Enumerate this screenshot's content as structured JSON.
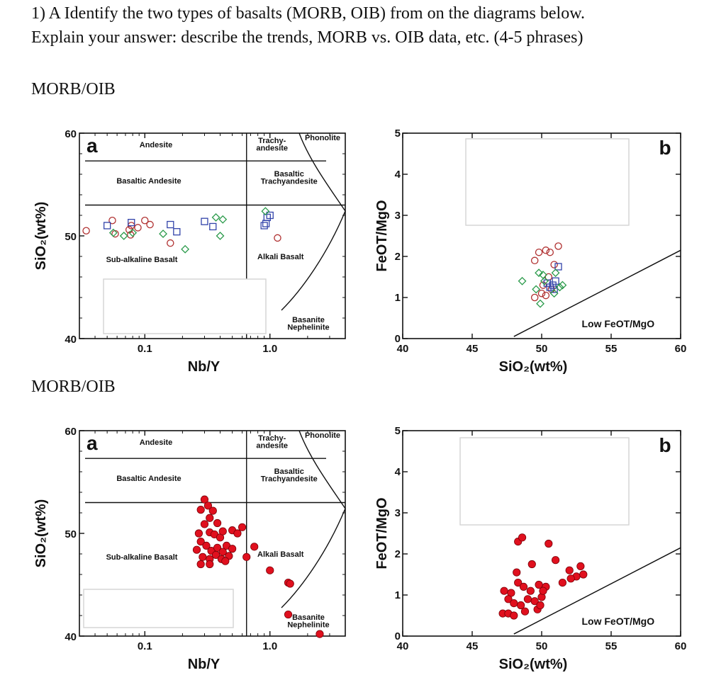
{
  "question": {
    "line1": "1) A Identify the two types of basalts (MORB, OIB) from on the diagrams below.",
    "line2": "Explain your answer: describe the trends, MORB vs. OIB data, etc. (4-5 phrases)"
  },
  "section_labels": [
    "MORB/OIB",
    "MORB/OIB"
  ],
  "colors": {
    "morb_circle": "#b03030",
    "morb_square": "#3344aa",
    "morb_diamond": "#2a9a4a",
    "oib_fill": "#e0101e",
    "oib_stroke": "#7a0008"
  },
  "chart_data": [
    {
      "type": "scatter",
      "panel": "a",
      "set": "MORB/OIB (open symbols)",
      "xlabel": "Nb/Y",
      "ylabel": "SiO2(wt%)",
      "xscale": "log",
      "xlim": [
        0.03,
        4
      ],
      "ylim": [
        40,
        60
      ],
      "xticks": [
        "0.1",
        "1.0"
      ],
      "yticks": [
        "40",
        "50",
        "60"
      ],
      "fields": [
        "Andesite",
        "Trachy-\nandesite",
        "Phonolite",
        "Basaltic Andesite",
        "Basaltic\nTrachyandesite",
        "Sub-alkaline Basalt",
        "Alkali Basalt",
        "Basanite\nNephelinite"
      ],
      "series": [
        {
          "name": "circles",
          "marker": "open-circle",
          "points": [
            [
              0.034,
              50.5
            ],
            [
              0.055,
              51.5
            ],
            [
              0.058,
              50.2
            ],
            [
              0.075,
              50.6
            ],
            [
              0.077,
              50.1
            ],
            [
              0.078,
              51.0
            ],
            [
              0.088,
              50.8
            ],
            [
              0.1,
              51.5
            ],
            [
              0.11,
              51.1
            ],
            [
              0.16,
              49.3
            ],
            [
              1.15,
              49.8
            ]
          ]
        },
        {
          "name": "squares",
          "marker": "open-square",
          "points": [
            [
              0.05,
              51.0
            ],
            [
              0.078,
              51.3
            ],
            [
              0.16,
              51.1
            ],
            [
              0.18,
              50.4
            ],
            [
              0.3,
              51.4
            ],
            [
              0.35,
              50.9
            ],
            [
              0.9,
              51.0
            ],
            [
              0.95,
              51.8
            ],
            [
              1.0,
              52.0
            ],
            [
              0.93,
              51.2
            ]
          ]
        },
        {
          "name": "diamonds",
          "marker": "open-diamond",
          "points": [
            [
              0.056,
              50.3
            ],
            [
              0.068,
              50.0
            ],
            [
              0.08,
              50.3
            ],
            [
              0.14,
              50.2
            ],
            [
              0.21,
              48.7
            ],
            [
              0.37,
              51.8
            ],
            [
              0.42,
              51.6
            ],
            [
              0.4,
              50.0
            ],
            [
              0.92,
              52.4
            ]
          ]
        }
      ]
    },
    {
      "type": "scatter",
      "panel": "b",
      "set": "MORB/OIB (open symbols)",
      "xlabel": "SiO2(wt%)",
      "ylabel": "FeOT/MgO",
      "xlim": [
        40,
        60
      ],
      "ylim": [
        0,
        5
      ],
      "xticks": [
        "40",
        "45",
        "50",
        "55",
        "60"
      ],
      "yticks": [
        "0",
        "1",
        "2",
        "3",
        "4",
        "5"
      ],
      "annotation": "Low FeOT/MgO",
      "boundary_line": [
        [
          48,
          0.05
        ],
        [
          60,
          2.15
        ]
      ],
      "series": [
        {
          "name": "circles",
          "marker": "open-circle",
          "points": [
            [
              49.5,
              1.9
            ],
            [
              49.8,
              2.1
            ],
            [
              50.3,
              2.15
            ],
            [
              50.6,
              2.1
            ],
            [
              51.2,
              2.25
            ],
            [
              49.5,
              1.0
            ],
            [
              50.0,
              1.1
            ],
            [
              50.3,
              1.05
            ],
            [
              50.7,
              1.2
            ],
            [
              50.9,
              1.8
            ],
            [
              50.5,
              1.5
            ],
            [
              50.1,
              1.3
            ]
          ]
        },
        {
          "name": "squares",
          "marker": "open-square",
          "points": [
            [
              50.4,
              1.35
            ],
            [
              50.8,
              1.3
            ],
            [
              51.0,
              1.4
            ],
            [
              51.2,
              1.75
            ],
            [
              50.9,
              1.2
            ],
            [
              50.6,
              1.25
            ]
          ]
        },
        {
          "name": "diamonds",
          "marker": "open-diamond",
          "points": [
            [
              48.6,
              1.4
            ],
            [
              49.6,
              1.2
            ],
            [
              49.9,
              0.85
            ],
            [
              49.8,
              1.6
            ],
            [
              50.1,
              1.55
            ],
            [
              51.0,
              1.6
            ],
            [
              51.3,
              1.25
            ],
            [
              51.5,
              1.3
            ],
            [
              50.9,
              1.1
            ],
            [
              50.2,
              1.4
            ]
          ]
        }
      ]
    },
    {
      "type": "scatter",
      "panel": "a",
      "set": "MORB/OIB (filled red)",
      "xlabel": "Nb/Y",
      "ylabel": "SiO2(wt%)",
      "xscale": "log",
      "xlim": [
        0.03,
        4
      ],
      "ylim": [
        40,
        60
      ],
      "xticks": [
        "0.1",
        "1.0"
      ],
      "yticks": [
        "40",
        "50",
        "60"
      ],
      "fields": [
        "Andesite",
        "Trachy-\nandesite",
        "Phonolite",
        "Basaltic Andesite",
        "Basaltic\nTrachyandesite",
        "Sub-alkaline Basalt",
        "Alkali Basalt",
        "Basanite\nNephelinite"
      ],
      "series": [
        {
          "name": "filled",
          "marker": "filled-circle",
          "points": [
            [
              0.28,
              52.3
            ],
            [
              0.3,
              53.3
            ],
            [
              0.32,
              52.7
            ],
            [
              0.35,
              52.2
            ],
            [
              0.33,
              51.5
            ],
            [
              0.38,
              51.0
            ],
            [
              0.3,
              50.9
            ],
            [
              0.27,
              50.0
            ],
            [
              0.33,
              50.1
            ],
            [
              0.36,
              49.9
            ],
            [
              0.4,
              49.6
            ],
            [
              0.42,
              50.2
            ],
            [
              0.5,
              50.3
            ],
            [
              0.55,
              50.0
            ],
            [
              0.6,
              50.6
            ],
            [
              0.28,
              49.2
            ],
            [
              0.31,
              48.8
            ],
            [
              0.34,
              48.3
            ],
            [
              0.38,
              48.6
            ],
            [
              0.42,
              48.2
            ],
            [
              0.45,
              48.8
            ],
            [
              0.5,
              48.5
            ],
            [
              0.26,
              48.4
            ],
            [
              0.29,
              47.7
            ],
            [
              0.33,
              47.5
            ],
            [
              0.37,
              47.9
            ],
            [
              0.41,
              47.5
            ],
            [
              0.47,
              47.8
            ],
            [
              0.28,
              47.0
            ],
            [
              0.33,
              47.0
            ],
            [
              0.44,
              47.3
            ],
            [
              0.65,
              47.7
            ],
            [
              0.75,
              48.7
            ],
            [
              1.0,
              46.4
            ],
            [
              1.4,
              45.2
            ],
            [
              1.45,
              45.1
            ],
            [
              1.4,
              42.1
            ],
            [
              2.5,
              40.2
            ]
          ]
        }
      ]
    },
    {
      "type": "scatter",
      "panel": "b",
      "set": "MORB/OIB (filled red)",
      "xlabel": "SiO2(wt%)",
      "ylabel": "FeOT/MgO",
      "xlim": [
        40,
        60
      ],
      "ylim": [
        0,
        5
      ],
      "xticks": [
        "40",
        "45",
        "50",
        "55",
        "60"
      ],
      "yticks": [
        "0",
        "1",
        "2",
        "3",
        "4",
        "5"
      ],
      "annotation": "Low FeOT/MgO",
      "boundary_line": [
        [
          48,
          0.05
        ],
        [
          60,
          2.15
        ]
      ],
      "series": [
        {
          "name": "filled",
          "marker": "filled-circle",
          "points": [
            [
              48.3,
              2.3
            ],
            [
              48.6,
              2.4
            ],
            [
              50.5,
              2.25
            ],
            [
              49.3,
              1.75
            ],
            [
              51.0,
              1.85
            ],
            [
              48.2,
              1.55
            ],
            [
              52.0,
              1.6
            ],
            [
              52.8,
              1.7
            ],
            [
              52.5,
              1.45
            ],
            [
              52.1,
              1.4
            ],
            [
              53.0,
              1.5
            ],
            [
              47.3,
              1.1
            ],
            [
              47.8,
              1.05
            ],
            [
              48.3,
              1.3
            ],
            [
              48.7,
              1.2
            ],
            [
              49.2,
              1.1
            ],
            [
              49.8,
              1.25
            ],
            [
              50.3,
              1.2
            ],
            [
              51.5,
              1.3
            ],
            [
              47.6,
              0.9
            ],
            [
              48.0,
              0.8
            ],
            [
              48.5,
              0.75
            ],
            [
              49.0,
              0.9
            ],
            [
              49.5,
              0.85
            ],
            [
              50.0,
              0.95
            ],
            [
              50.1,
              1.1
            ],
            [
              47.2,
              0.55
            ],
            [
              47.6,
              0.55
            ],
            [
              48.0,
              0.5
            ],
            [
              48.8,
              0.6
            ],
            [
              49.7,
              0.65
            ],
            [
              49.9,
              0.75
            ]
          ]
        }
      ]
    }
  ]
}
